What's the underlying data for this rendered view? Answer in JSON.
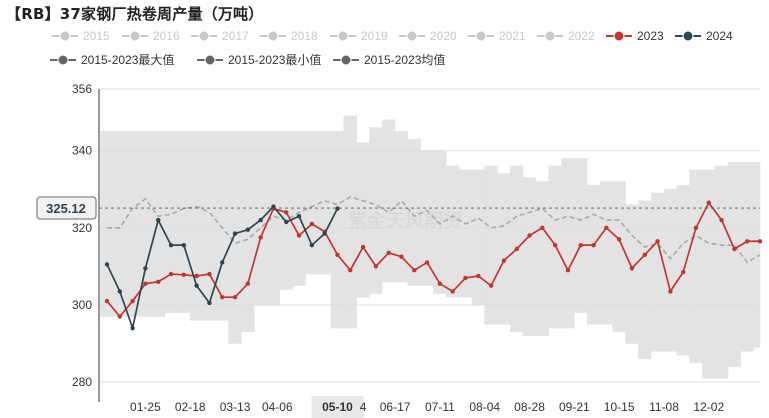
{
  "chart_data": {
    "type": "line",
    "title": "【RB】37家钢厂热卷周产量（万吨）",
    "y_ticks": [
      280,
      300,
      320,
      340,
      356
    ],
    "ylim": [
      280,
      356
    ],
    "crosshair_value": "325.12",
    "x_tick_labels": [
      "01-25",
      "02-18",
      "03-13",
      "04-06",
      "05-10",
      "4",
      "06-17",
      "07-11",
      "08-04",
      "08-28",
      "09-21",
      "10-15",
      "11-08",
      "12-02"
    ],
    "x_week_start": 1,
    "x_week_end": 52,
    "x_ticks_weeks": [
      4,
      7.5,
      11,
      14.3,
      19,
      21,
      23.5,
      27,
      30.5,
      34,
      37.5,
      41,
      44.5,
      48
    ],
    "highlight_label": "05-10",
    "watermark": "紫金天风期货",
    "grid": true,
    "legend": [
      {
        "name": "2015",
        "color": "#c8c8c8",
        "active": false
      },
      {
        "name": "2016",
        "color": "#c8c8c8",
        "active": false
      },
      {
        "name": "2017",
        "color": "#c8c8c8",
        "active": false
      },
      {
        "name": "2018",
        "color": "#c8c8c8",
        "active": false
      },
      {
        "name": "2019",
        "color": "#c8c8c8",
        "active": false
      },
      {
        "name": "2020",
        "color": "#c8c8c8",
        "active": false
      },
      {
        "name": "2021",
        "color": "#c8c8c8",
        "active": false
      },
      {
        "name": "2022",
        "color": "#c8c8c8",
        "active": false
      },
      {
        "name": "2023",
        "color": "#c23531",
        "active": true
      },
      {
        "name": "2024",
        "color": "#2f4554",
        "active": true
      },
      {
        "name": "2015-2023最大值",
        "color": "#666666",
        "active": true
      },
      {
        "name": "2015-2023最小值",
        "color": "#666666",
        "active": true
      },
      {
        "name": "2015-2023均值",
        "color": "#666666",
        "active": true
      }
    ],
    "series": [
      {
        "name": "2023",
        "color": "#c23531",
        "values": [
          301,
          297,
          301,
          305.5,
          306,
          308,
          307.8,
          307.5,
          308,
          302,
          302,
          305.5,
          317.5,
          325,
          324,
          318,
          321,
          319,
          313,
          309,
          315,
          310,
          313.5,
          312.5,
          309,
          311,
          305.5,
          303.5,
          307,
          307.5,
          305,
          311.5,
          314.5,
          318,
          320,
          315.5,
          309,
          315.5,
          315.5,
          320,
          317,
          309.5,
          313,
          316.5,
          303.5,
          308.5,
          320,
          326.5,
          322,
          314.5,
          316.5,
          316.5
        ]
      },
      {
        "name": "2024",
        "color": "#2f4554",
        "values": [
          310.5,
          303.5,
          294,
          309.5,
          322,
          315.5,
          315.5,
          305,
          300.5,
          311,
          318.5,
          319.5,
          322,
          325.5,
          321.5,
          323,
          315.5,
          318.5,
          325
        ]
      },
      {
        "name": "2015-2023均值",
        "color": "#aaaaaa",
        "values": [
          320,
          320,
          325,
          327.5,
          323,
          323.5,
          325,
          325.5,
          324,
          320,
          316,
          317,
          320,
          323,
          322,
          324,
          325.5,
          327,
          326,
          328,
          327,
          326,
          324,
          327,
          323,
          324.5,
          321,
          323,
          321,
          322.5,
          320,
          320.5,
          323,
          324,
          325,
          322,
          323,
          322,
          323.5,
          322,
          322,
          318,
          315,
          316,
          312,
          316,
          318,
          316,
          315.5,
          315.5,
          311,
          313
        ]
      },
      {
        "name": "2015-2023最大值",
        "color": "#e0e0e0",
        "values": [
          345,
          345,
          345,
          345,
          345,
          345,
          345,
          345,
          345,
          345,
          345,
          345,
          345,
          345,
          345,
          345,
          345,
          345,
          345,
          349,
          342,
          346,
          348,
          345,
          343,
          340,
          340,
          336,
          335,
          335,
          336,
          334,
          336,
          333,
          332,
          336,
          338,
          338,
          331,
          332,
          332,
          326,
          327,
          329,
          330,
          331,
          335,
          335,
          336,
          337,
          337,
          337
        ]
      },
      {
        "name": "2015-2023最小值",
        "color": "#e0e0e0",
        "values": [
          297,
          297,
          297,
          297,
          297,
          298,
          298,
          296,
          296,
          296,
          290,
          293,
          300,
          300,
          304,
          305,
          308,
          308,
          294,
          294,
          302,
          303,
          306,
          306,
          305,
          305,
          303,
          302,
          302,
          300,
          295,
          295,
          293,
          292,
          292,
          294,
          294,
          298,
          295,
          295,
          293,
          290,
          286,
          288,
          288,
          287,
          285,
          281,
          281,
          284,
          288,
          289
        ]
      }
    ]
  }
}
